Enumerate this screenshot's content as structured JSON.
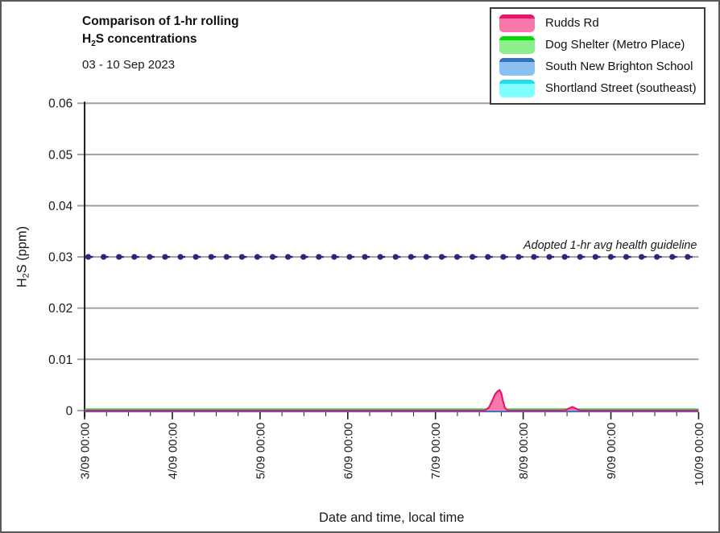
{
  "figure": {
    "title_line1": "Comparison of 1-hr rolling",
    "title_line2_pre": "H",
    "title_line2_sub": "2",
    "title_line2_post": "S concentrations",
    "subtitle": "03 - 10 Sep 2023"
  },
  "legend": {
    "items": [
      {
        "label": "Rudds Rd",
        "fill": "#F878AC",
        "stripe": "#EA1468"
      },
      {
        "label": "Dog Shelter (Metro Place)",
        "fill": "#8BEF8B",
        "stripe": "#00DC00"
      },
      {
        "label": "South New Brighton School",
        "fill": "#8CC0F0",
        "stripe": "#3A6FC4"
      },
      {
        "label": "Shortland Street (southeast)",
        "fill": "#80FFFF",
        "stripe": "#22DDEE"
      }
    ]
  },
  "chart_data": {
    "type": "area",
    "title": "Comparison of 1-hr rolling H2S concentrations",
    "subtitle": "03 - 10 Sep 2023",
    "xlabel": "Date and time, local time",
    "ylabel": "H2S (ppm)",
    "ylabel_parts": {
      "pre": "H",
      "sub": "2",
      "post": "S (ppm)"
    },
    "ylim": [
      0,
      0.06
    ],
    "yticks": [
      0,
      0.01,
      0.02,
      0.03,
      0.04,
      0.05,
      0.06
    ],
    "x_tick_labels": [
      "3/09 00:00",
      "4/09 00:00",
      "5/09 00:00",
      "6/09 00:00",
      "7/09 00:00",
      "8/09 00:00",
      "9/09 00:00",
      "10/09 00:00"
    ],
    "x_span_days": 7,
    "x_minor_tick_hours": 6,
    "grid": "horizontal",
    "grid_color": "#9E9E9E",
    "text_color": "#1a1a1a",
    "legend_position": "top-right",
    "guideline": {
      "value": 0.03,
      "label": "Adopted 1-hr avg health guideline",
      "color": "#3B1E7E",
      "style": "dashed-with-dots"
    },
    "series": [
      {
        "name": "Rudds Rd",
        "line_color": "#EA1468",
        "fill_color": "#F878AC",
        "points_days_ppm": [
          [
            0,
            0
          ],
          [
            4.56,
            0
          ],
          [
            4.61,
            0.0006
          ],
          [
            4.65,
            0.002
          ],
          [
            4.68,
            0.0032
          ],
          [
            4.71,
            0.0038
          ],
          [
            4.73,
            0.004
          ],
          [
            4.75,
            0.0034
          ],
          [
            4.77,
            0.0018
          ],
          [
            4.79,
            0.0006
          ],
          [
            4.82,
            0
          ],
          [
            5.47,
            0
          ],
          [
            5.52,
            0.0004
          ],
          [
            5.56,
            0.0007
          ],
          [
            5.6,
            0.0004
          ],
          [
            5.65,
            0
          ],
          [
            7,
            0
          ]
        ]
      },
      {
        "name": "Dog Shelter (Metro Place)",
        "line_color": "#00DC00",
        "fill_color": "#8BEF8B",
        "points_days_ppm": [
          [
            0,
            0
          ],
          [
            7,
            0
          ]
        ]
      },
      {
        "name": "South New Brighton School",
        "line_color": "#3A6FC4",
        "fill_color": "#8CC0F0",
        "points_days_ppm": [
          [
            0,
            0
          ],
          [
            7,
            0
          ]
        ]
      },
      {
        "name": "Shortland Street (southeast)",
        "line_color": "#22DDEE",
        "fill_color": "#80FFFF",
        "points_days_ppm": [
          [
            0,
            0
          ],
          [
            4.57,
            0
          ],
          [
            4.63,
            0.0003
          ],
          [
            4.69,
            0.0006
          ],
          [
            4.75,
            0.0004
          ],
          [
            4.81,
            0
          ],
          [
            7,
            0
          ]
        ]
      }
    ]
  }
}
